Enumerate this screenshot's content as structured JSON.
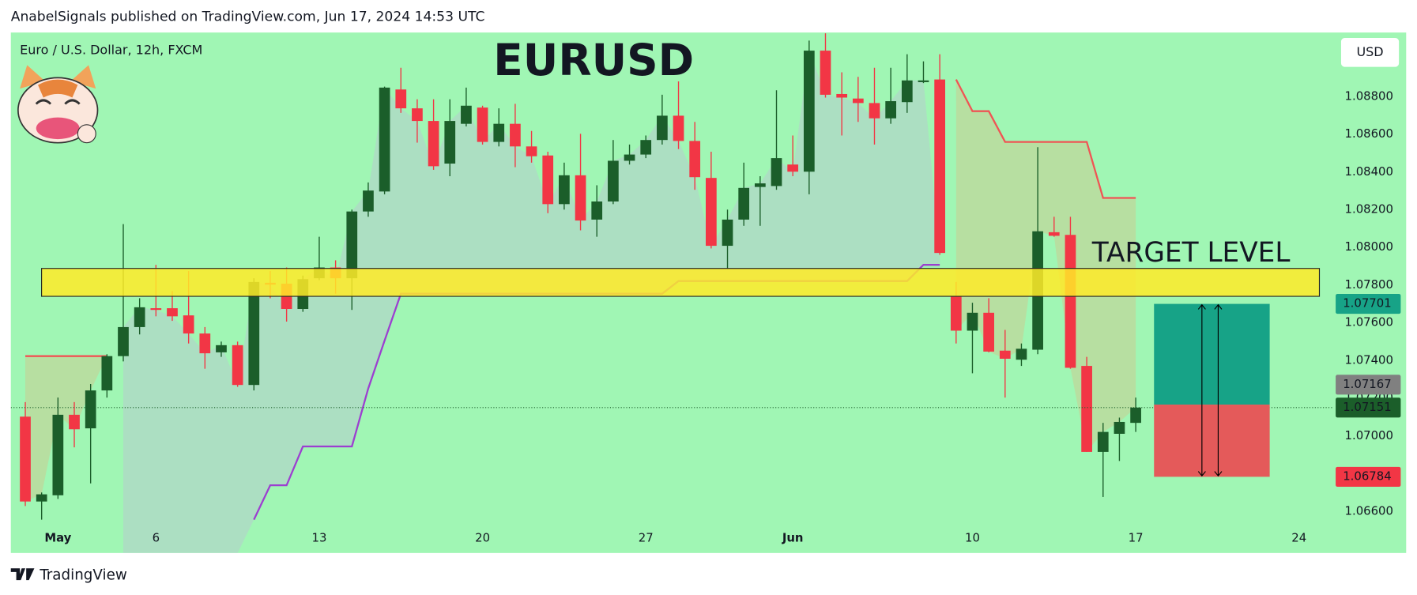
{
  "header": "AnabelSignals published on TradingView.com, Jun 17, 2024 14:53 UTC",
  "footer": "TradingView",
  "chart_data": {
    "type": "candlestick",
    "title": "EURUSD",
    "subtitle": "Euro / U.S. Dollar, 12h, FXCM",
    "currency": "USD",
    "annotation": "TARGET LEVEL",
    "up_color": "#1b5e2a",
    "down_color": "#f23645",
    "categories": [
      null,
      null,
      "May",
      null,
      null,
      null,
      null,
      null,
      "6",
      null,
      null,
      null,
      null,
      null,
      null,
      null,
      null,
      null,
      "13",
      null,
      null,
      null,
      null,
      null,
      null,
      null,
      null,
      null,
      "20",
      null,
      null,
      null,
      null,
      null,
      null,
      null,
      null,
      null,
      "27",
      null,
      null,
      null,
      null,
      null,
      null,
      null,
      null,
      "Jun",
      null,
      null,
      null,
      null,
      null,
      null,
      null,
      null,
      null,
      null,
      "10",
      null,
      null,
      null,
      null,
      null,
      null,
      null,
      null,
      null,
      "17",
      null,
      null,
      null,
      null,
      null,
      null,
      null,
      null,
      null,
      "24",
      null,
      null
    ],
    "open": [
      1.07103,
      1.06653,
      1.06686,
      1.07113,
      1.07041,
      1.07242,
      1.07424,
      1.07578,
      1.07678,
      1.07678,
      1.0764,
      1.07544,
      1.07444,
      1.07482,
      1.07271,
      1.07813,
      1.07808,
      1.07674,
      1.07837,
      1.07894,
      1.07837,
      1.08191,
      1.08297,
      1.08838,
      1.08738,
      1.08671,
      1.08445,
      1.08656,
      1.08742,
      1.0856,
      1.08656,
      1.08536,
      1.08488,
      1.0823,
      1.08383,
      1.08148,
      1.08244,
      1.0846,
      1.08493,
      1.0857,
      1.08699,
      1.08565,
      1.08369,
      1.08009,
      1.08148,
      1.08321,
      1.08326,
      1.0844,
      1.08402,
      1.09044,
      1.08814,
      1.0879,
      1.08766,
      1.08685,
      1.08771,
      1.08877,
      1.08891,
      1.07741,
      1.07559,
      1.07654,
      1.07453,
      1.07405,
      1.07458,
      1.08081,
      1.08067,
      1.07372,
      1.06916,
      1.07012,
      1.0707,
      null,
      null,
      null,
      null,
      null,
      null,
      null,
      null,
      null,
      null,
      null,
      null
    ],
    "high": [
      1.0718,
      1.06701,
      1.07204,
      1.0718,
      1.07276,
      1.07434,
      1.08124,
      1.07731,
      1.07908,
      1.07769,
      1.07875,
      1.07578,
      1.07501,
      1.07501,
      1.07837,
      1.07875,
      1.07894,
      1.07851,
      1.08057,
      1.07932,
      1.08201,
      1.08345,
      1.08853,
      1.08953,
      1.08786,
      1.08786,
      1.08786,
      1.08848,
      1.08752,
      1.08738,
      1.08762,
      1.08618,
      1.08508,
      1.0845,
      1.08603,
      1.0833,
      1.0857,
      1.08546,
      1.08594,
      1.0881,
      1.08881,
      1.08666,
      1.08508,
      1.08201,
      1.0845,
      1.08378,
      1.08834,
      1.08594,
      1.09097,
      1.09136,
      1.08929,
      1.08905,
      1.08953,
      1.08953,
      1.09025,
      1.08987,
      1.09025,
      1.07817,
      1.07707,
      1.07731,
      1.07563,
      1.07491,
      1.08532,
      1.08163,
      1.08163,
      1.0742,
      1.0707,
      1.07098,
      1.07204,
      null,
      null,
      null,
      null,
      null,
      null,
      null,
      null,
      null,
      null,
      null,
      null
    ],
    "low": [
      1.06629,
      1.06557,
      1.06667,
      1.0694,
      1.06749,
      1.07204,
      1.07396,
      1.07539,
      1.07635,
      1.07611,
      1.07491,
      1.07357,
      1.0742,
      1.07261,
      1.07242,
      1.07731,
      1.07607,
      1.07659,
      1.07827,
      1.07755,
      1.07669,
      1.08163,
      1.08282,
      1.08714,
      1.08556,
      1.08412,
      1.08378,
      1.08642,
      1.08546,
      1.08536,
      1.08426,
      1.0845,
      1.08182,
      1.08201,
      1.08091,
      1.08057,
      1.0823,
      1.0844,
      1.08474,
      1.08546,
      1.08522,
      1.08306,
      1.07995,
      1.07889,
      1.08115,
      1.08115,
      1.08306,
      1.08378,
      1.08282,
      1.08795,
      1.08594,
      1.08666,
      1.08546,
      1.08656,
      1.08714,
      1.08872,
      1.07961,
      1.07491,
      1.07333,
      1.07444,
      1.07204,
      1.07372,
      1.07434,
      1.08057,
      1.07357,
      1.06916,
      1.06677,
      1.06868,
      1.07022,
      null,
      null,
      null,
      null,
      null,
      null,
      null,
      null,
      null,
      null,
      null,
      null
    ],
    "close": [
      1.06653,
      1.06691,
      1.07113,
      1.07036,
      1.07242,
      1.07424,
      1.07578,
      1.07683,
      1.07669,
      1.07635,
      1.07544,
      1.07439,
      1.07482,
      1.07271,
      1.07817,
      1.07803,
      1.07674,
      1.07832,
      1.07894,
      1.07837,
      1.08191,
      1.08302,
      1.08848,
      1.08738,
      1.08671,
      1.08431,
      1.08671,
      1.08752,
      1.0856,
      1.08656,
      1.08536,
      1.08484,
      1.0823,
      1.08383,
      1.08143,
      1.08244,
      1.0846,
      1.08493,
      1.0857,
      1.08699,
      1.08565,
      1.08373,
      1.08009,
      1.08148,
      1.08316,
      1.0834,
      1.08474,
      1.08402,
      1.09044,
      1.0881,
      1.08795,
      1.08766,
      1.08685,
      1.08776,
      1.08886,
      1.08886,
      1.07971,
      1.07559,
      1.07654,
      1.07448,
      1.0741,
      1.07463,
      1.08086,
      1.08062,
      1.07362,
      1.06916,
      1.07022,
      1.07075,
      1.07151,
      null,
      null,
      null,
      null,
      null,
      null,
      null,
      null,
      null,
      null,
      null,
      null
    ],
    "indicators": [
      {
        "color": "#f05454",
        "values": [
          1.07424,
          1.07424,
          1.07424,
          1.07424,
          1.07424,
          1.07424,
          null,
          null,
          null,
          null,
          null,
          null,
          null,
          null,
          null,
          null,
          null,
          null,
          null,
          null,
          null,
          null,
          null,
          null,
          null,
          null,
          null,
          null,
          null,
          null,
          null,
          null,
          null,
          null,
          null,
          null,
          null,
          null,
          null,
          null,
          null,
          null,
          null,
          null,
          null,
          null,
          null,
          null,
          null,
          null,
          null,
          null,
          null,
          null,
          null,
          null,
          null,
          1.08891,
          1.08723,
          1.08723,
          1.0856,
          1.0856,
          1.0856,
          1.0856,
          1.0856,
          1.0856,
          1.08263,
          1.08263,
          1.08263,
          null,
          null,
          null,
          null,
          null,
          null,
          null,
          null,
          null,
          null,
          null,
          null
        ]
      },
      {
        "color": "#9c3fd0",
        "values": [
          null,
          null,
          null,
          null,
          null,
          null,
          null,
          null,
          null,
          null,
          null,
          null,
          null,
          null,
          1.06557,
          1.06739,
          1.06739,
          1.06945,
          1.06945,
          1.06945,
          1.06945,
          1.07252,
          1.07506,
          1.07755,
          1.07755,
          1.07755,
          1.07755,
          1.07755,
          1.07755,
          1.07755,
          1.07755,
          1.07755,
          1.07755,
          1.07755,
          1.07755,
          1.07755,
          1.07755,
          1.07755,
          1.07755,
          1.07755,
          1.07822,
          1.07822,
          1.07822,
          1.07822,
          1.07822,
          1.07822,
          1.07822,
          1.07822,
          1.07822,
          1.07822,
          1.07822,
          1.07822,
          1.07822,
          1.07822,
          1.07822,
          1.07908,
          1.07908,
          null,
          null,
          null,
          null,
          null,
          null,
          null,
          null,
          null,
          null,
          null,
          null,
          null,
          null,
          null,
          null,
          null,
          null,
          null,
          null,
          null,
          null,
          null,
          null
        ]
      }
    ],
    "zone": [
      1.07741,
      1.07889
    ],
    "position": {
      "target": 1.07701,
      "entry": 1.07167,
      "stop": 1.06784
    },
    "ylim": [
      1.0638,
      1.0914
    ],
    "yticks": [
      {
        "value": 1.066,
        "label": "1.06600"
      },
      {
        "value": 1.068,
        "label": "1.06800"
      },
      {
        "value": 1.07,
        "label": "1.07000"
      },
      {
        "value": 1.072,
        "label": "1.07200"
      },
      {
        "value": 1.074,
        "label": "1.07400"
      },
      {
        "value": 1.076,
        "label": "1.07600"
      },
      {
        "value": 1.078,
        "label": "1.07800"
      },
      {
        "value": 1.08,
        "label": "1.08000"
      },
      {
        "value": 1.082,
        "label": "1.08200"
      },
      {
        "value": 1.084,
        "label": "1.08400"
      },
      {
        "value": 1.086,
        "label": "1.08600"
      },
      {
        "value": 1.088,
        "label": "1.08800"
      }
    ]
  }
}
